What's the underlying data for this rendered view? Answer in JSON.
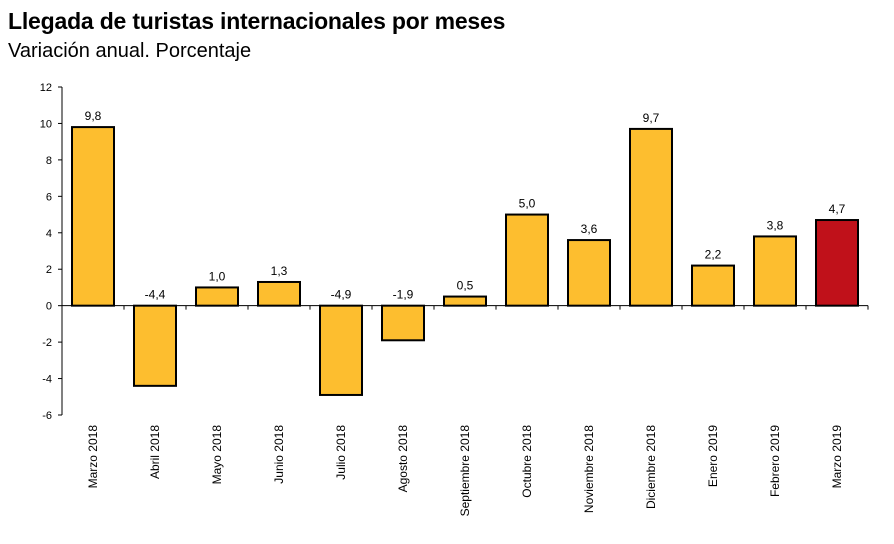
{
  "chart_data": {
    "type": "bar",
    "title": "Llegada de turistas internacionales por meses",
    "subtitle": "Variación anual. Porcentaje",
    "xlabel": "",
    "ylabel": "",
    "ylim": [
      -6,
      12
    ],
    "yticks": [
      12,
      10,
      8,
      6,
      4,
      2,
      0,
      -2,
      -4,
      -6
    ],
    "categories": [
      "Marzo 2018",
      "Abril 2018",
      "Mayo 2018",
      "Junio 2018",
      "Julio 2018",
      "Agosto 2018",
      "Septiembre 2018",
      "Octubre 2018",
      "Noviembre 2018",
      "Diciembre 2018",
      "Enero 2019",
      "Febrero 2019",
      "Marzo 2019"
    ],
    "values": [
      9.8,
      -4.4,
      1.0,
      1.3,
      -4.9,
      -1.9,
      0.5,
      5.0,
      3.6,
      9.7,
      2.2,
      3.8,
      4.7
    ],
    "data_labels": [
      "9,8",
      "-4,4",
      "1,0",
      "1,3",
      "-4,9",
      "-1,9",
      "0,5",
      "5,0",
      "3,6",
      "9,7",
      "2,2",
      "3,8",
      "4,7"
    ],
    "grid": false,
    "legend": "none",
    "colors": {
      "bar": "#FDBE2F",
      "highlight": "#C0111A",
      "outline": "#000000"
    },
    "highlight_index": 12
  }
}
